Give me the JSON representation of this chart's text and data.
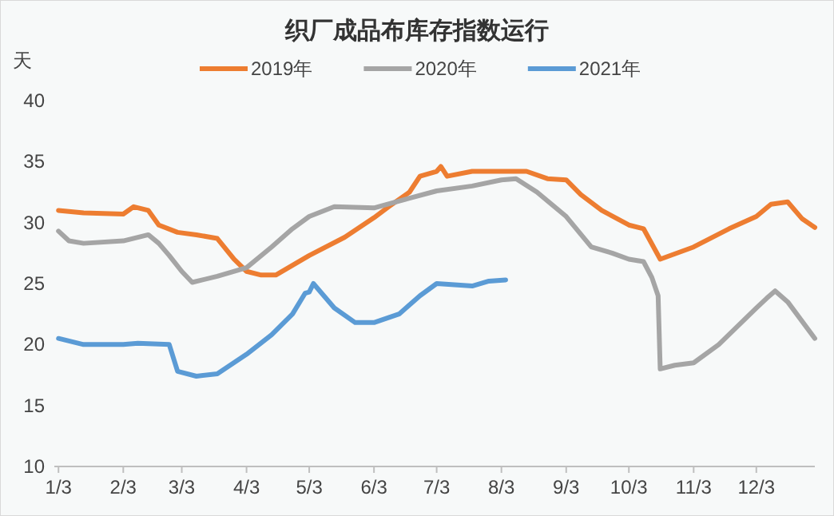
{
  "chart_data": {
    "type": "line",
    "title": "织厂成品布库存指数运行",
    "ylabel": "天",
    "legend": "top",
    "grid": false,
    "marker": "none",
    "line_style": "solid",
    "xlim": [
      "--01-01",
      "--12-31"
    ],
    "ylim": [
      10,
      40
    ],
    "yticks": [
      10,
      15,
      20,
      25,
      30,
      35,
      40
    ],
    "xticks": [
      {
        "value": "--01-03",
        "label": "1/3"
      },
      {
        "value": "--02-03",
        "label": "2/3"
      },
      {
        "value": "--03-03",
        "label": "3/3"
      },
      {
        "value": "--04-03",
        "label": "4/3"
      },
      {
        "value": "--05-03",
        "label": "5/3"
      },
      {
        "value": "--06-03",
        "label": "6/3"
      },
      {
        "value": "--07-03",
        "label": "7/3"
      },
      {
        "value": "--08-03",
        "label": "8/3"
      },
      {
        "value": "--09-03",
        "label": "9/3"
      },
      {
        "value": "--10-03",
        "label": "10/3"
      },
      {
        "value": "--11-03",
        "label": "11/3"
      },
      {
        "value": "--12-03",
        "label": "12/3"
      }
    ],
    "series": [
      {
        "name": "2019年",
        "color": "#ed7d31",
        "x": [
          "--01-03",
          "--01-15",
          "--02-03",
          "--02-08",
          "--02-15",
          "--02-20",
          "--03-01",
          "--03-10",
          "--03-20",
          "--03-28",
          "--04-03",
          "--04-10",
          "--04-17",
          "--05-03",
          "--05-20",
          "--06-03",
          "--06-10",
          "--06-20",
          "--06-25",
          "--07-03",
          "--07-05",
          "--07-08",
          "--07-20",
          "--08-03",
          "--08-15",
          "--08-25",
          "--09-03",
          "--09-10",
          "--09-20",
          "--10-03",
          "--10-10",
          "--10-18",
          "--11-03",
          "--11-20",
          "--12-03",
          "--12-10",
          "--12-18",
          "--12-25",
          "--12-31"
        ],
        "values": [
          31,
          30.8,
          30.7,
          31.3,
          31,
          29.8,
          29.2,
          29,
          28.7,
          27,
          26,
          25.7,
          25.7,
          27.3,
          28.8,
          30.4,
          31.3,
          32.5,
          33.8,
          34.2,
          34.6,
          33.8,
          34.2,
          34.2,
          34.2,
          33.6,
          33.5,
          32.3,
          31,
          29.8,
          29.5,
          27,
          28,
          29.5,
          30.5,
          31.5,
          31.7,
          30.3,
          29.6
        ]
      },
      {
        "name": "2020年",
        "color": "#a5a5a5",
        "x": [
          "--01-03",
          "--01-08",
          "--01-15",
          "--02-03",
          "--02-15",
          "--02-20",
          "--02-25",
          "--03-03",
          "--03-08",
          "--03-20",
          "--04-03",
          "--04-15",
          "--04-25",
          "--05-03",
          "--05-15",
          "--06-03",
          "--06-20",
          "--07-03",
          "--07-20",
          "--08-03",
          "--08-10",
          "--08-20",
          "--09-03",
          "--09-15",
          "--09-25",
          "--10-03",
          "--10-10",
          "--10-14",
          "--10-17",
          "--10-18",
          "--10-25",
          "--11-03",
          "--11-15",
          "--12-03",
          "--12-08",
          "--12-12",
          "--12-18",
          "--12-31"
        ],
        "values": [
          29.3,
          28.5,
          28.3,
          28.5,
          29,
          28.3,
          27.3,
          26,
          25.1,
          25.6,
          26.3,
          28,
          29.5,
          30.5,
          31.3,
          31.2,
          32,
          32.6,
          33,
          33.5,
          33.6,
          32.5,
          30.5,
          28,
          27.5,
          27,
          26.8,
          25.5,
          24,
          18,
          18.3,
          18.5,
          20,
          23,
          23.8,
          24.4,
          23.5,
          20.5
        ]
      },
      {
        "name": "2021年",
        "color": "#5b9bd5",
        "x": [
          "--01-03",
          "--01-15",
          "--02-03",
          "--02-10",
          "--02-25",
          "--03-01",
          "--03-10",
          "--03-20",
          "--04-03",
          "--04-15",
          "--04-25",
          "--05-01",
          "--05-03",
          "--05-05",
          "--05-15",
          "--05-25",
          "--06-03",
          "--06-15",
          "--06-25",
          "--07-03",
          "--07-20",
          "--07-28",
          "--08-05"
        ],
        "values": [
          20.5,
          20,
          20,
          20.1,
          20,
          17.8,
          17.4,
          17.6,
          19.2,
          20.8,
          22.5,
          24.2,
          24.3,
          25,
          23,
          21.8,
          21.8,
          22.5,
          24,
          25,
          24.8,
          25.2,
          25.3
        ]
      }
    ]
  }
}
